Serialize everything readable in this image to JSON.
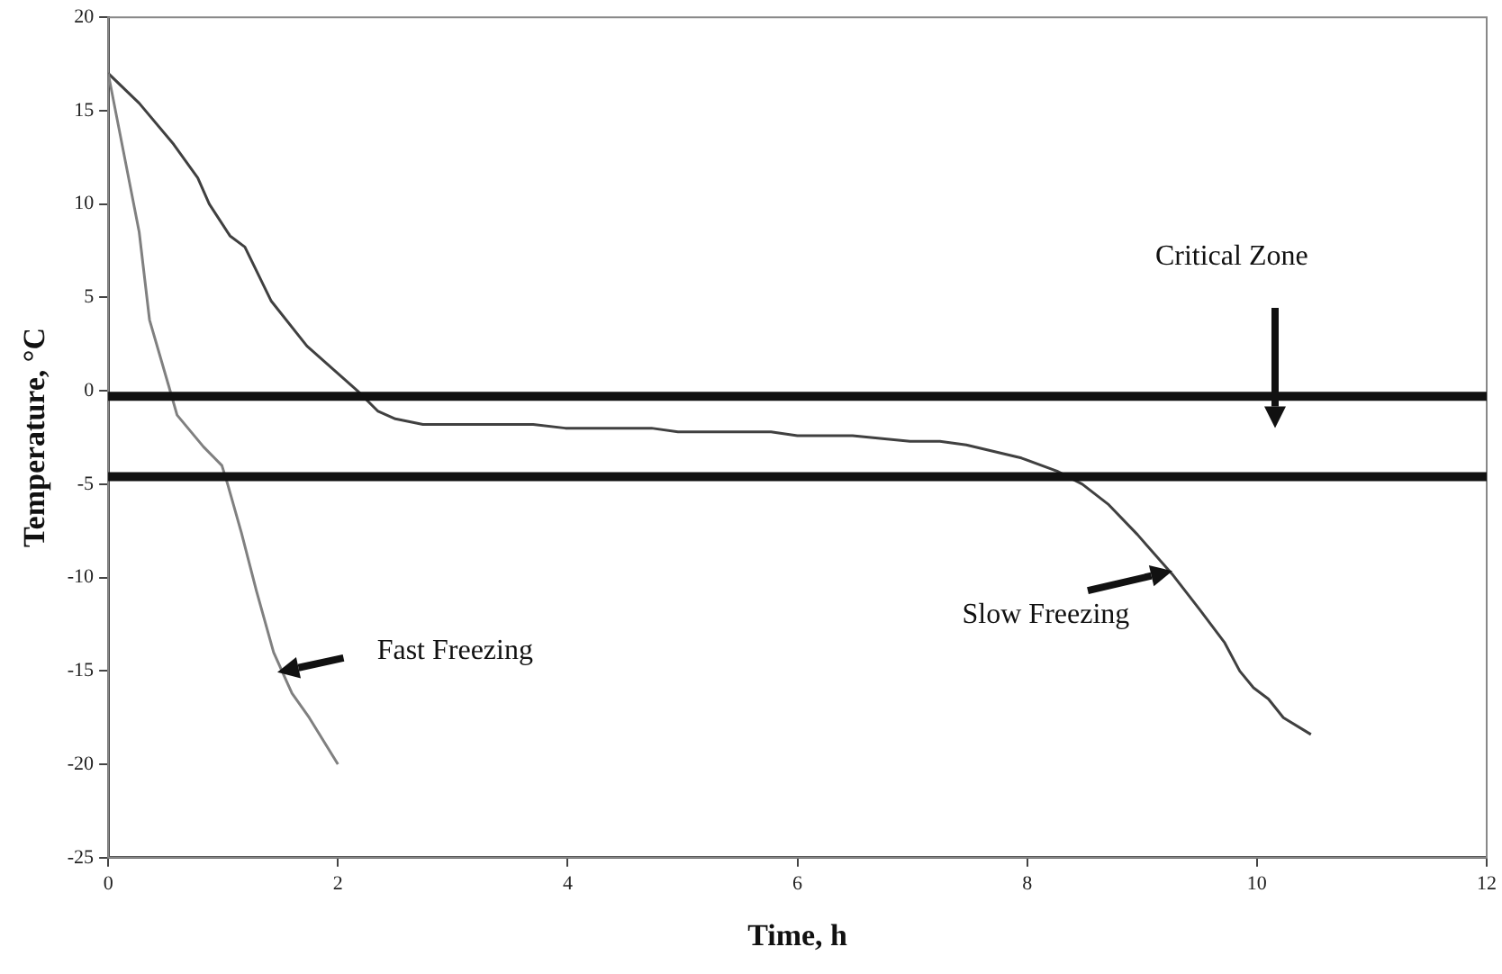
{
  "chart_data": {
    "type": "line",
    "xlabel": "Time, h",
    "ylabel": "Temperature, °C",
    "xlim": [
      0,
      12
    ],
    "xticks": [
      0,
      2,
      4,
      6,
      8,
      10,
      12
    ],
    "ylim": [
      -25,
      20
    ],
    "yticks": [
      -25,
      -20,
      -15,
      -10,
      -5,
      0,
      5,
      10,
      15,
      20
    ],
    "grid": false,
    "legend": false,
    "marker": "none",
    "line_style": "solid",
    "series": [
      {
        "color": "#808080",
        "x": [
          0,
          0.27,
          0.36,
          0.53,
          0.6,
          0.83,
          0.99,
          1.04,
          1.16,
          1.29,
          1.44,
          1.6,
          1.75,
          2.0
        ],
        "values": [
          17,
          8.5,
          3.8,
          0.2,
          -1.3,
          -3.0,
          -4.0,
          -5.0,
          -7.6,
          -10.7,
          -14.0,
          -16.2,
          -17.5,
          -20.0
        ]
      },
      {
        "color": "#404040",
        "x": [
          0,
          0.27,
          0.57,
          0.78,
          0.88,
          1.06,
          1.19,
          1.42,
          1.73,
          2.17,
          2.35,
          2.5,
          2.74,
          3.7,
          3.98,
          4.73,
          4.96,
          5.77,
          6.0,
          6.48,
          6.98,
          7.24,
          7.47,
          7.95,
          8.26,
          8.48,
          8.71,
          8.96,
          9.26,
          9.5,
          9.72,
          9.85,
          9.97,
          10.1,
          10.23,
          10.47
        ],
        "values": [
          17,
          15.4,
          13.2,
          11.4,
          10.0,
          8.3,
          7.7,
          4.8,
          2.4,
          0.0,
          -1.1,
          -1.5,
          -1.8,
          -1.8,
          -2.0,
          -2.0,
          -2.2,
          -2.2,
          -2.4,
          -2.4,
          -2.7,
          -2.7,
          -2.9,
          -3.6,
          -4.3,
          -5.0,
          -6.1,
          -7.7,
          -9.8,
          -11.7,
          -13.5,
          -15.0,
          -15.9,
          -16.5,
          -17.5,
          -18.4
        ]
      }
    ],
    "ref_lines": [
      {
        "axis": "y",
        "value": -0.3,
        "color": "#111111",
        "label": "Critical Zone"
      },
      {
        "axis": "y",
        "value": -4.6,
        "color": "#111111"
      }
    ],
    "annotations": [
      "Fast Freezing",
      {
        "text": "Slow Freezing",
        "x": 9.26,
        "y": -9.6
      }
    ]
  }
}
